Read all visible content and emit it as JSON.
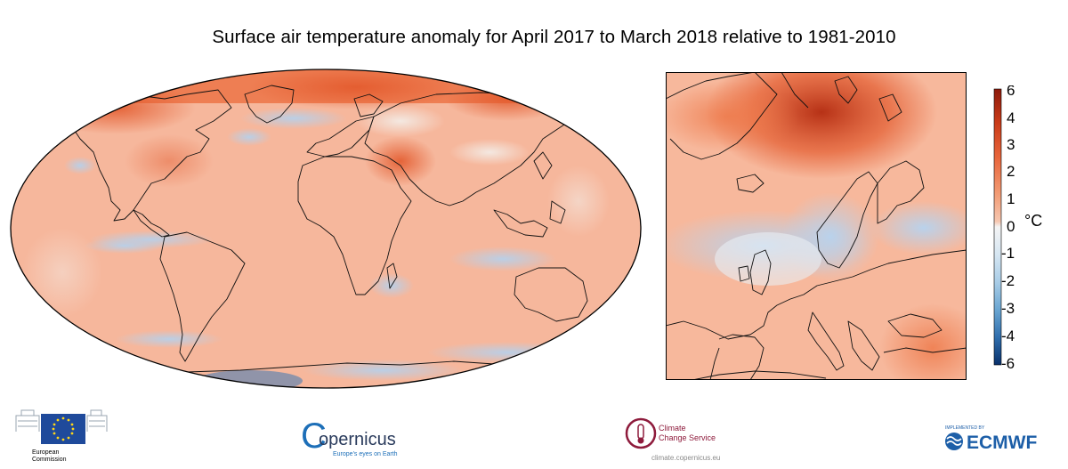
{
  "title": "Surface air temperature anomaly for April 2017 to March 2018 relative to 1981-2010",
  "colorbar": {
    "unit": "°C",
    "tick_labels": [
      "6",
      "4",
      "3",
      "2",
      "1",
      "0",
      "-1",
      "-2",
      "-3",
      "-4",
      "-6"
    ],
    "colors": [
      "#08306b",
      "#2f6ead",
      "#6aa6d2",
      "#a9cde7",
      "#d6e6f2",
      "#f4f4f4",
      "#f6c7b1",
      "#f29b74",
      "#e8663c",
      "#c93a18",
      "#8d1a0c"
    ]
  },
  "maps": {
    "world": {
      "projection": "Robinson-like oval",
      "palette": "red-blue diverging"
    },
    "europe": {
      "region": "Europe and North Atlantic"
    }
  },
  "colors": {
    "land_outline": "#111111",
    "warm_base": "#f7b59a",
    "warm_strong": "#e55a2d",
    "cool": "#c9dcee"
  },
  "logos": {
    "eu": {
      "line1": "European",
      "line2": "Commission"
    },
    "copernicus": {
      "name": "opernicus",
      "letter": "C",
      "tagline": "Europe's eyes on Earth"
    },
    "c3s": {
      "line1": "Climate",
      "line2": "Change Service",
      "url": "climate.copernicus.eu"
    },
    "ecmwf": {
      "implemented": "IMPLEMENTED BY",
      "name": "ECMWF"
    }
  }
}
